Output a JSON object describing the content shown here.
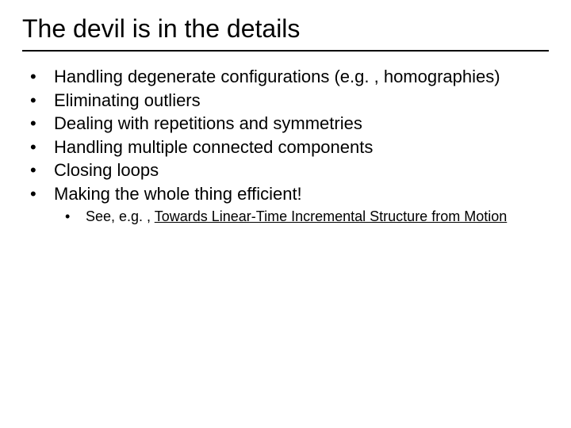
{
  "title": "The devil is in the details",
  "bullets": {
    "b0": "Handling degenerate configurations (e.g. , homographies)",
    "b1": "Eliminating outliers",
    "b2": "Dealing with repetitions and symmetries",
    "b3": "Handling multiple connected components",
    "b4": "Closing loops",
    "b5": "Making the whole thing efficient!"
  },
  "sub": {
    "prefix": "See, e.g. , ",
    "link": "Towards Linear-Time Incremental Structure from Motion"
  },
  "style": {
    "bullet_char": "•",
    "title_fontsize": 32,
    "body_fontsize": 22,
    "sub_fontsize": 18,
    "text_color": "#000000",
    "background_color": "#ffffff",
    "rule_color": "#000000",
    "rule_width": 2
  }
}
